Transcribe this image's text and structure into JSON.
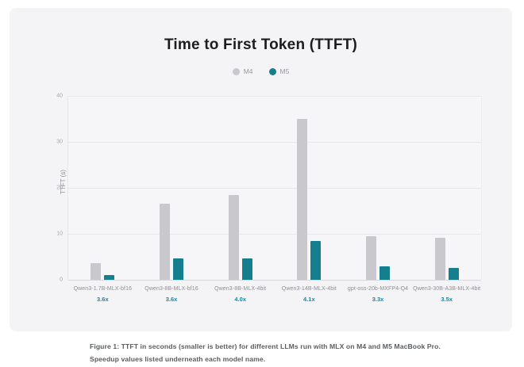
{
  "colors": {
    "page_background": "#ffffff",
    "card_background": "#f4f4f6",
    "title": "#1d1d1f",
    "m4_bar": "#c9c9cd",
    "m5_bar": "#157f90",
    "speedup_text": "#1b87a0",
    "gridline": "#e8e8ec",
    "axis_text": "#a8a8ad"
  },
  "chart_data": {
    "type": "bar",
    "title": "Time to First Token (TTFT)",
    "xlabel": "",
    "ylabel": "TTFT (s)",
    "ylim": [
      0,
      40
    ],
    "yticks": [
      0,
      10,
      20,
      30,
      40
    ],
    "grid": true,
    "legend_position": "top-center",
    "categories": [
      "Qwen3-1.7B-MLX-bf16",
      "Qwen3-8B-MLX-bf16",
      "Qwen3-8B-MLX-4bit",
      "Qwen3-14B-MLX-4bit",
      "gpt-oss-20b-MXFP4-Q4",
      "Qwen3-30B-A3B-MLX-4bit"
    ],
    "speedups": [
      "3.6x",
      "3.6x",
      "4.0x",
      "4.1x",
      "3.3x",
      "3.5x"
    ],
    "series": [
      {
        "name": "M4",
        "color": "#c9c9cd",
        "values": [
          3.6,
          16.5,
          18.4,
          35.0,
          9.5,
          9.2
        ]
      },
      {
        "name": "M5",
        "color": "#157f90",
        "values": [
          1.0,
          4.6,
          4.6,
          8.5,
          2.9,
          2.6
        ]
      }
    ]
  },
  "legend": {
    "items": [
      {
        "label": "M4",
        "color": "#c9c9cd"
      },
      {
        "label": "M5",
        "color": "#157f90"
      }
    ]
  },
  "caption": "Figure 1: TTFT in seconds (smaller is better) for different LLMs run with MLX on M4 and M5 MacBook Pro. Speedup values listed underneath each model name."
}
